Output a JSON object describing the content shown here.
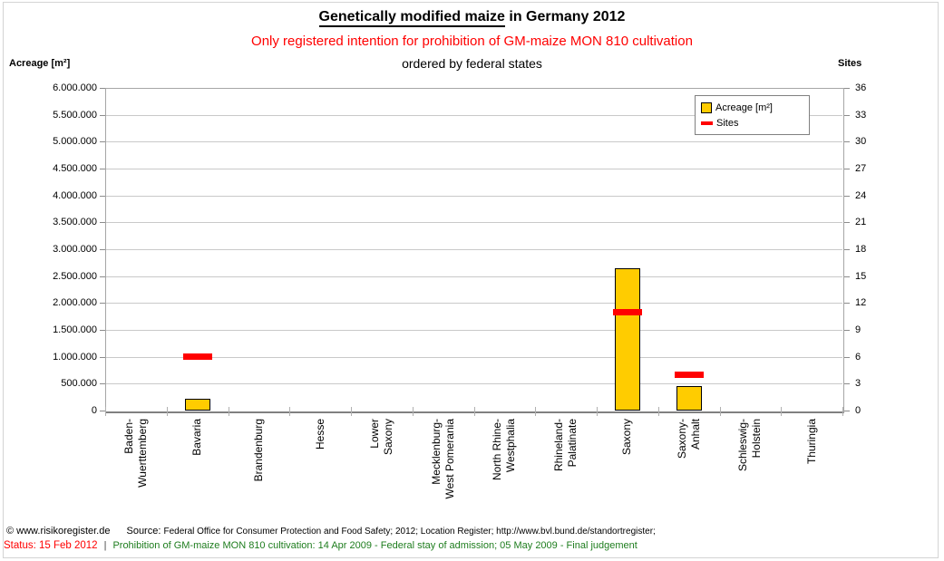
{
  "title": {
    "underlined_part": "Genetically modified maize",
    "suffix": " in Germany 2012"
  },
  "subtitle": "Only registered intention for prohibition of GM-maize MON 810 cultivation",
  "subtitle2": "ordered by federal states",
  "left_axis_title": "Acreage [m²]",
  "right_axis_title": "Sites",
  "legend": {
    "acreage_label": "Acreage [m²]",
    "sites_label": "Sites"
  },
  "footer": {
    "copyright": "© www.risikoregister.de",
    "source_label": "Source:",
    "source_text": "Federal Office for Consumer Protection and Food Safety; 2012; Location Register; http://www.bvl.bund.de/standortregister;",
    "status_label": "Status: 15 Feb 2012",
    "separator": "|",
    "status_text": "Prohibition of GM-maize MON 810 cultivation: 14 Apr 2009 - Federal stay of admission; 05 May 2009 - Final judgement"
  },
  "colors": {
    "bar_fill": "#ffcc00",
    "bar_border": "#000000",
    "sites_marker": "#ff0000",
    "subtitle_red": "#ff0000",
    "footer_green": "#1e7d1e"
  },
  "chart_data": {
    "type": "bar",
    "title": "Genetically modified maize in Germany 2012",
    "subtitle": "Only registered intention for prohibition of GM-maize MON 810 cultivation",
    "subtitle2": "ordered by federal states",
    "grid": true,
    "legend_position": "top-right",
    "categories": [
      "Baden-Wuerttemberg",
      "Bavaria",
      "Brandenburg",
      "Hesse",
      "Lower Saxony",
      "Mecklenburg-West Pomerania",
      "North Rhine-Westphalia",
      "Rhineland-Palatinate",
      "Saxony",
      "Saxony-Anhalt",
      "Schleswig-Holstein",
      "Thuringia"
    ],
    "category_label_lines": [
      [
        "Baden-",
        "Wuerttemberg"
      ],
      [
        "Bavaria"
      ],
      [
        "Brandenburg"
      ],
      [
        "Hesse"
      ],
      [
        "Lower",
        "Saxony"
      ],
      [
        "Mecklenburg-",
        "West Pomerania"
      ],
      [
        "North Rhine-",
        "Westphalia"
      ],
      [
        "Rhineland-",
        "Palatinate"
      ],
      [
        "Saxony"
      ],
      [
        "Saxony-",
        "Anhalt"
      ],
      [
        "Schleswig-",
        "Holstein"
      ],
      [
        "Thuringia"
      ]
    ],
    "left_axis": {
      "label": "Acreage [m²]",
      "min": 0,
      "max": 6000000,
      "step": 500000,
      "number_format": "de-dots"
    },
    "right_axis": {
      "label": "Sites",
      "min": 0,
      "max": 36,
      "step": 3
    },
    "series": [
      {
        "name": "Acreage [m²]",
        "type": "bar",
        "axis": "left",
        "color": "#ffcc00",
        "values": [
          0,
          220000,
          0,
          0,
          0,
          0,
          0,
          0,
          2650000,
          450000,
          0,
          0
        ]
      },
      {
        "name": "Sites",
        "type": "dash",
        "axis": "right",
        "color": "#ff0000",
        "values": [
          0,
          6,
          0,
          0,
          0,
          0,
          0,
          0,
          11,
          4,
          0,
          0
        ]
      }
    ]
  }
}
